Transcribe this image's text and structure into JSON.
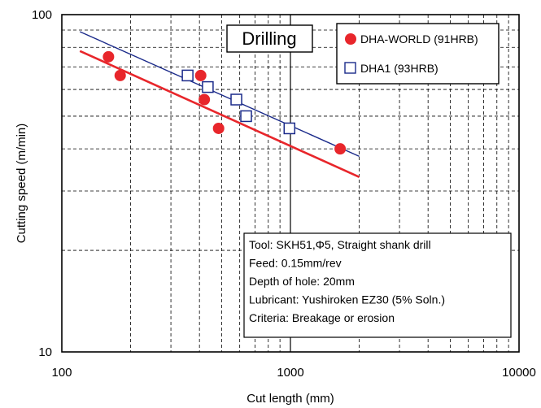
{
  "chart_data": {
    "type": "scatter",
    "title": "Drilling",
    "xlabel": "Cut length (mm)",
    "ylabel": "Cutting speed (m/min)",
    "x_scale": "log",
    "y_scale": "log",
    "xlim": [
      100,
      10000
    ],
    "ylim": [
      10,
      100
    ],
    "x_ticks": [
      "100",
      "1000",
      "10000"
    ],
    "y_ticks": [
      "10",
      "100"
    ],
    "grid": "major solid, minor dashed",
    "legend_position": "top-right",
    "series": [
      {
        "name": "DHA-WORLD (91HRB)",
        "marker": "filled-circle",
        "color": "#e8262b",
        "points": [
          {
            "x": 160,
            "y": 75
          },
          {
            "x": 180,
            "y": 66
          },
          {
            "x": 405,
            "y": 66
          },
          {
            "x": 420,
            "y": 56
          },
          {
            "x": 485,
            "y": 46
          },
          {
            "x": 1650,
            "y": 40
          }
        ],
        "trendline": {
          "x": [
            120,
            2000
          ],
          "y": [
            78,
            33
          ]
        }
      },
      {
        "name": "DHA1 (93HRB)",
        "marker": "open-square",
        "color": "#1a2a8a",
        "points": [
          {
            "x": 355,
            "y": 66
          },
          {
            "x": 435,
            "y": 61
          },
          {
            "x": 580,
            "y": 56
          },
          {
            "x": 640,
            "y": 50
          },
          {
            "x": 990,
            "y": 46
          }
        ],
        "trendline": {
          "x": [
            120,
            2000
          ],
          "y": [
            89,
            38
          ]
        }
      }
    ],
    "annotation_lines": [
      {
        "label": "Tool:",
        "text": "SKH51,Φ5, Straight shank drill"
      },
      {
        "label": "Feed:",
        "text": "0.15mm/rev"
      },
      {
        "label": "Depth of hole:",
        "text": "20mm"
      },
      {
        "label": "Lubricant:",
        "text": "Yushiroken  EZ30 (5% Soln.)"
      },
      {
        "label": "Criteria:",
        "text": "Breakage or erosion"
      }
    ]
  }
}
